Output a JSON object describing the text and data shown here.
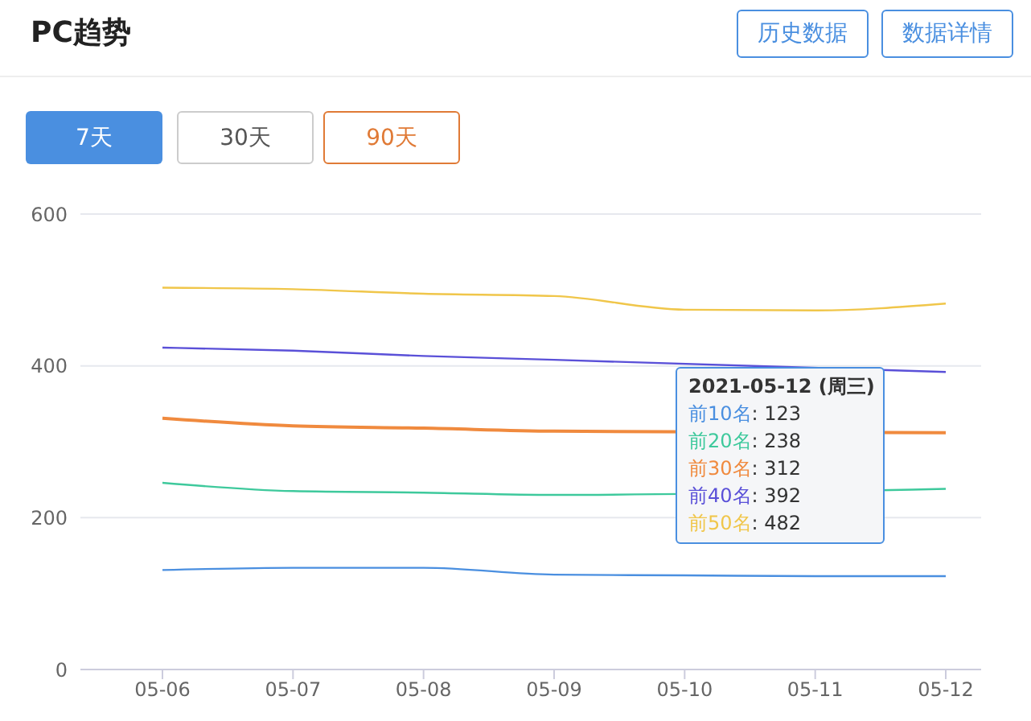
{
  "chart_data": {
    "type": "line",
    "title": "PC趋势",
    "annotations": [
      "历史数据",
      "数据详情",
      "7天",
      "30天",
      "90天",
      "2021-05-12 (周三)",
      ": 123",
      ": 238",
      ": 312",
      ": 392",
      ": 482"
    ],
    "categories": [
      "05-06",
      "05-07",
      "05-08",
      "05-09",
      "05-10",
      "05-11",
      "05-12"
    ],
    "series": [
      {
        "name": "前10名",
        "color": "#4a8fe0",
        "values": [
          131,
          134,
          134,
          125,
          124,
          123,
          123
        ]
      },
      {
        "name": "前20名",
        "color": "#3ec99c",
        "values": [
          246,
          235,
          233,
          230,
          null,
          null,
          238
        ]
      },
      {
        "name": "前30名",
        "color": "#f08a3e",
        "values": [
          331,
          321,
          318,
          314,
          null,
          null,
          312
        ]
      },
      {
        "name": "前40名",
        "color": "#5a50d8",
        "values": [
          424,
          420,
          413,
          408,
          null,
          null,
          392
        ]
      },
      {
        "name": "前50名",
        "color": "#f0c64a",
        "values": [
          503,
          501,
          495,
          492,
          474,
          473,
          482
        ]
      }
    ],
    "ylim": [
      0,
      600
    ],
    "yticks": [
      0,
      200,
      400,
      600
    ],
    "grid": "y",
    "marker": "none",
    "line_style": "solid"
  }
}
